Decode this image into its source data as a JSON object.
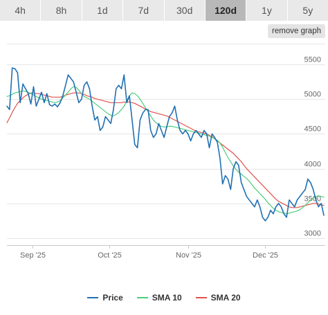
{
  "tabs": [
    {
      "label": "4h",
      "active": false
    },
    {
      "label": "8h",
      "active": false
    },
    {
      "label": "1d",
      "active": false
    },
    {
      "label": "7d",
      "active": false
    },
    {
      "label": "30d",
      "active": false
    },
    {
      "label": "120d",
      "active": true
    },
    {
      "label": "1y",
      "active": false
    },
    {
      "label": "5y",
      "active": false
    }
  ],
  "remove_graph_label": "remove graph",
  "colors": {
    "price": "#1f6fb2",
    "sma10": "#4ccc7a",
    "sma20": "#e0514a",
    "grid": "#e6e6e6",
    "axis_text": "#666666"
  },
  "chart_data": {
    "type": "line",
    "x_start": "2025-08-22",
    "x_end": "2025-12-24",
    "ylim": [
      2900,
      5800
    ],
    "y_ticks": [
      3000,
      3500,
      4000,
      4500,
      5000,
      5500
    ],
    "x_ticks": [
      {
        "label": "Sep '25",
        "date": "2025-09-01"
      },
      {
        "label": "Oct '25",
        "date": "2025-10-01"
      },
      {
        "label": "Nov '25",
        "date": "2025-11-01"
      },
      {
        "label": "Dec '25",
        "date": "2025-12-01"
      }
    ],
    "grid": true,
    "legend_position": "bottom",
    "series": [
      {
        "name": "Price",
        "key": "price",
        "values": [
          4900,
          4850,
          5450,
          5440,
          5380,
          4950,
          5220,
          5150,
          5080,
          4930,
          5180,
          4900,
          5000,
          5100,
          4950,
          5080,
          4920,
          4900,
          4930,
          4890,
          4950,
          5050,
          5200,
          5350,
          5300,
          5250,
          5100,
          4950,
          5000,
          5200,
          5250,
          5150,
          4900,
          4700,
          4750,
          4550,
          4600,
          4750,
          4700,
          4650,
          4850,
          5150,
          5200,
          5150,
          5350,
          4950,
          5050,
          4700,
          4350,
          4300,
          4700,
          4800,
          4850,
          4850,
          4550,
          4450,
          4500,
          4650,
          4550,
          4450,
          4600,
          4750,
          4800,
          4900,
          4700,
          4550,
          4500,
          4550,
          4500,
          4400,
          4500,
          4550,
          4500,
          4450,
          4550,
          4500,
          4300,
          4500,
          4450,
          4380,
          4150,
          3780,
          3900,
          3850,
          3700,
          4000,
          4100,
          4050,
          3800,
          3700,
          3600,
          3550,
          3500,
          3450,
          3550,
          3450,
          3300,
          3250,
          3300,
          3400,
          3350,
          3450,
          3500,
          3450,
          3350,
          3300,
          3550,
          3500,
          3450,
          3550,
          3600,
          3650,
          3700,
          3850,
          3800,
          3700,
          3550,
          3450,
          3500,
          3330
        ]
      },
      {
        "name": "SMA 10",
        "key": "sma10",
        "values": [
          5040,
          5050,
          5070,
          5090,
          5100,
          5110,
          5120,
          5110,
          5100,
          5080,
          5060,
          5040,
          5020,
          5000,
          4990,
          4980,
          4970,
          4960,
          4950,
          4960,
          4980,
          5020,
          5060,
          5100,
          5150,
          5180,
          5170,
          5130,
          5080,
          5040,
          5020,
          5000,
          4970,
          4940,
          4910,
          4880,
          4850,
          4820,
          4790,
          4770,
          4760,
          4780,
          4810,
          4850,
          4900,
          4980,
          5050,
          5090,
          5080,
          5050,
          5000,
          4940,
          4880,
          4820,
          4760,
          4700,
          4660,
          4630,
          4610,
          4600,
          4600,
          4610,
          4610,
          4600,
          4590,
          4580,
          4570,
          4560,
          4550,
          4540,
          4530,
          4520,
          4510,
          4500,
          4490,
          4480,
          4470,
          4450,
          4430,
          4410,
          4370,
          4310,
          4230,
          4160,
          4100,
          4040,
          3990,
          3950,
          3920,
          3890,
          3860,
          3820,
          3770,
          3720,
          3680,
          3640,
          3600,
          3560,
          3510,
          3470,
          3430,
          3400,
          3380,
          3370,
          3360,
          3350,
          3360,
          3370,
          3380,
          3390,
          3410,
          3440,
          3470,
          3510,
          3550,
          3580,
          3600,
          3610,
          3600,
          3590
        ]
      },
      {
        "name": "SMA 20",
        "key": "sma20",
        "values": [
          4660,
          4730,
          4810,
          4880,
          4940,
          4980,
          5020,
          5050,
          5070,
          5090,
          5090,
          5080,
          5080,
          5070,
          5060,
          5050,
          5040,
          5030,
          5030,
          5030,
          5030,
          5040,
          5060,
          5070,
          5080,
          5090,
          5090,
          5090,
          5080,
          5070,
          5050,
          5040,
          5030,
          5010,
          5000,
          4990,
          4980,
          4970,
          4960,
          4950,
          4950,
          4950,
          4950,
          4950,
          4960,
          4960,
          4960,
          4950,
          4940,
          4920,
          4900,
          4880,
          4860,
          4840,
          4820,
          4810,
          4800,
          4790,
          4780,
          4770,
          4760,
          4740,
          4720,
          4700,
          4680,
          4660,
          4640,
          4620,
          4600,
          4580,
          4560,
          4540,
          4530,
          4520,
          4510,
          4500,
          4480,
          4460,
          4430,
          4400,
          4370,
          4340,
          4310,
          4280,
          4250,
          4220,
          4180,
          4140,
          4100,
          4050,
          4000,
          3960,
          3920,
          3880,
          3840,
          3800,
          3760,
          3720,
          3680,
          3640,
          3600,
          3560,
          3530,
          3510,
          3490,
          3470,
          3450,
          3440,
          3440,
          3440,
          3450,
          3460,
          3470,
          3480,
          3490,
          3500,
          3500,
          3490,
          3480,
          3470
        ]
      }
    ]
  },
  "legend": [
    {
      "label": "Price",
      "color": "#1f6fb2"
    },
    {
      "label": "SMA 10",
      "color": "#4ccc7a"
    },
    {
      "label": "SMA 20",
      "color": "#e0514a"
    }
  ]
}
